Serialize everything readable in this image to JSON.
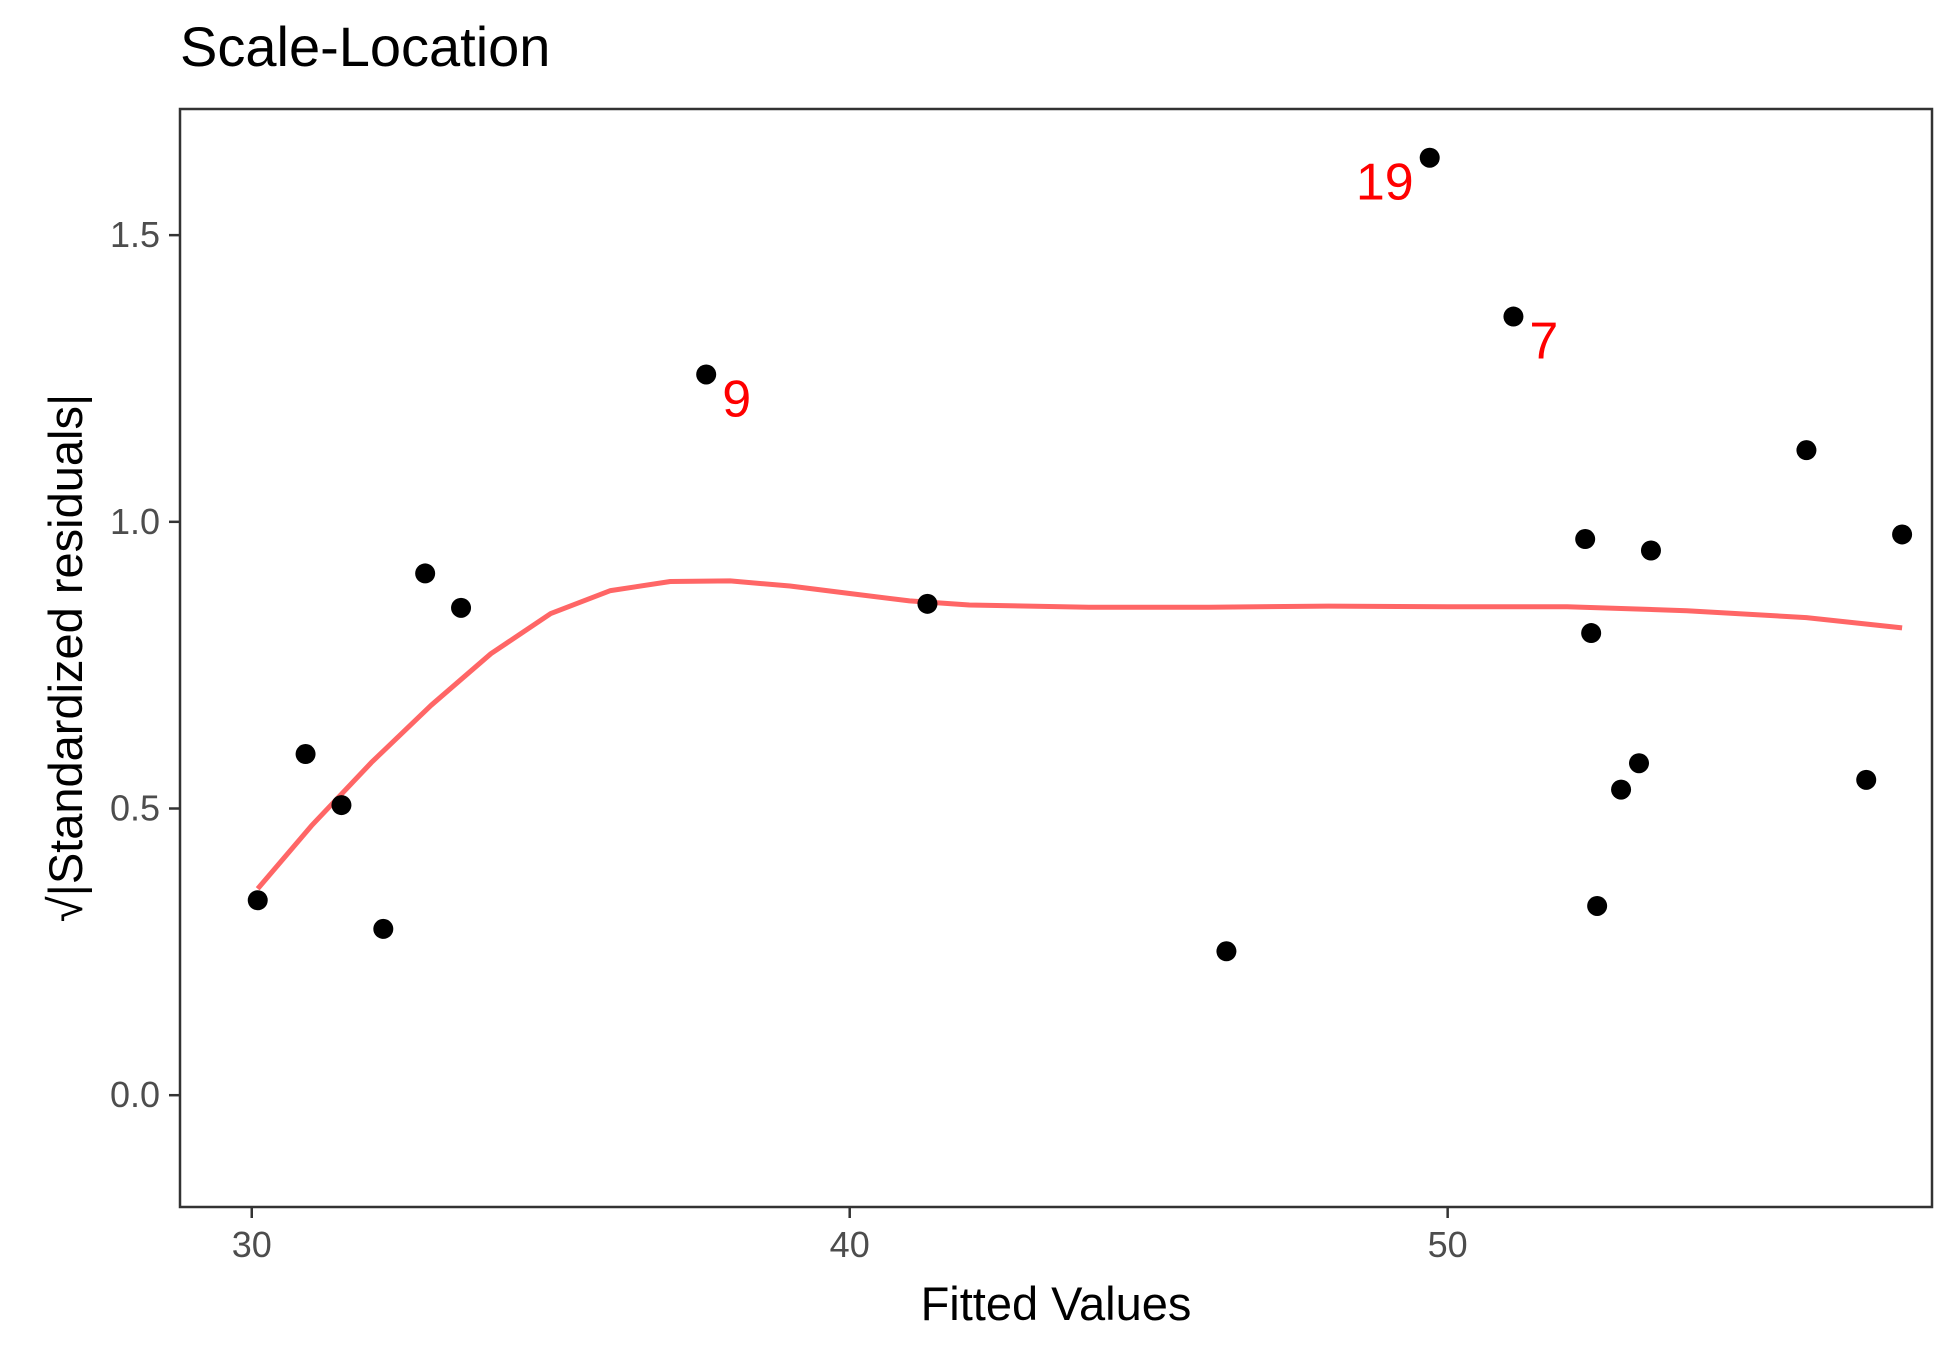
{
  "chart_data": {
    "type": "scatter",
    "title": "Scale-Location",
    "xlabel": "Fitted Values",
    "ylabel": "√|Standardized residuals|",
    "xlim": [
      28.8,
      58.1
    ],
    "ylim": [
      -0.195,
      1.72
    ],
    "xticks": [
      30,
      40,
      50
    ],
    "xtick_labels": [
      "30",
      "40",
      "50"
    ],
    "yticks": [
      0.0,
      0.5,
      1.0,
      1.5
    ],
    "ytick_labels": [
      "0.0",
      "0.5",
      "1.0",
      "1.5"
    ],
    "grid": false,
    "legend": "none",
    "point_color": "#000000",
    "smooth_color": "#ff6666",
    "label_color": "#ff0000",
    "points": [
      {
        "x": 30.1,
        "y": 0.34
      },
      {
        "x": 30.9,
        "y": 0.595
      },
      {
        "x": 31.5,
        "y": 0.506
      },
      {
        "x": 32.2,
        "y": 0.29
      },
      {
        "x": 32.9,
        "y": 0.91
      },
      {
        "x": 33.5,
        "y": 0.85
      },
      {
        "x": 37.6,
        "y": 1.257
      },
      {
        "x": 41.3,
        "y": 0.857
      },
      {
        "x": 46.3,
        "y": 0.251
      },
      {
        "x": 49.7,
        "y": 1.635
      },
      {
        "x": 51.1,
        "y": 1.358
      },
      {
        "x": 52.3,
        "y": 0.97
      },
      {
        "x": 52.4,
        "y": 0.806
      },
      {
        "x": 52.5,
        "y": 0.33
      },
      {
        "x": 52.9,
        "y": 0.533
      },
      {
        "x": 53.2,
        "y": 0.579
      },
      {
        "x": 53.4,
        "y": 0.95
      },
      {
        "x": 56.0,
        "y": 1.125
      },
      {
        "x": 57.0,
        "y": 0.55
      },
      {
        "x": 57.6,
        "y": 0.978
      }
    ],
    "smooth_curve": [
      {
        "x": 30.1,
        "y": 0.36
      },
      {
        "x": 31.0,
        "y": 0.47
      },
      {
        "x": 32.0,
        "y": 0.58
      },
      {
        "x": 33.0,
        "y": 0.68
      },
      {
        "x": 34.0,
        "y": 0.77
      },
      {
        "x": 35.0,
        "y": 0.84
      },
      {
        "x": 36.0,
        "y": 0.88
      },
      {
        "x": 37.0,
        "y": 0.896
      },
      {
        "x": 38.0,
        "y": 0.897
      },
      {
        "x": 39.0,
        "y": 0.888
      },
      {
        "x": 40.0,
        "y": 0.875
      },
      {
        "x": 41.0,
        "y": 0.862
      },
      {
        "x": 42.0,
        "y": 0.855
      },
      {
        "x": 44.0,
        "y": 0.851
      },
      {
        "x": 46.0,
        "y": 0.851
      },
      {
        "x": 48.0,
        "y": 0.853
      },
      {
        "x": 50.0,
        "y": 0.852
      },
      {
        "x": 52.0,
        "y": 0.852
      },
      {
        "x": 54.0,
        "y": 0.845
      },
      {
        "x": 56.0,
        "y": 0.833
      },
      {
        "x": 57.6,
        "y": 0.815
      }
    ],
    "annotations": [
      {
        "text": "9",
        "x": 37.6,
        "y": 1.257,
        "side": "right"
      },
      {
        "text": "19",
        "x": 49.7,
        "y": 1.635,
        "side": "left"
      },
      {
        "text": "7",
        "x": 51.1,
        "y": 1.358,
        "side": "right"
      }
    ]
  }
}
